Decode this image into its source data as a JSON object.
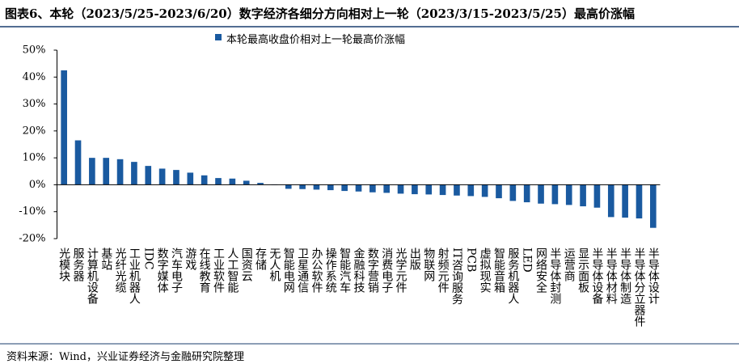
{
  "chart_data": {
    "type": "bar",
    "title": "图表6、本轮（2023/5/25-2023/6/20）数字经济各细分方向相对上一轮（2023/3/15-2023/5/25）最高价涨幅",
    "source": "资料来源：Wind，兴业证券经济与金融研究院整理",
    "series": [
      {
        "name": "本轮最高收盘价相对上一轮最高价涨幅",
        "color": "#1a5aa0",
        "values": [
          42.5,
          16.5,
          10,
          10,
          9.5,
          8.5,
          7,
          6,
          5.5,
          4.5,
          3.5,
          2.5,
          2.3,
          1.5,
          0.7,
          -0.1,
          -1.5,
          -1.6,
          -1.8,
          -2,
          -2.3,
          -2.5,
          -2.8,
          -3,
          -3.3,
          -3.5,
          -3.6,
          -3.8,
          -4,
          -4.2,
          -4.5,
          -5,
          -6,
          -6.5,
          -7,
          -7.2,
          -7.5,
          -8,
          -8.5,
          -12,
          -12.2,
          -12.5,
          -16
        ]
      }
    ],
    "categories": [
      "光模块",
      "服务器",
      "计算机设备",
      "基站",
      "光纤光缆",
      "工业机器人",
      "IDC",
      "数字媒体",
      "汽车电子",
      "游戏",
      "在线教育",
      "工业软件",
      "人工智能",
      "国资云",
      "存储",
      "无人机",
      "智能电网",
      "卫星通信",
      "办公软件",
      "操作系统",
      "智能汽车",
      "金融科技",
      "数字营销",
      "消费电子",
      "光学元件",
      "出版",
      "物联网",
      "射频元件",
      "IT咨询服务",
      "PCB",
      "虚拟现实",
      "智能音箱",
      "服务机器人",
      "LED",
      "网络安全",
      "半导体封测",
      "运营商",
      "显示面板",
      "半导体设备",
      "半导体材料",
      "半导体制造",
      "半导体分立器件",
      "半导体设计"
    ],
    "ylim": [
      -20,
      50
    ],
    "yticks": [
      {
        "value": -20,
        "label": "-20%"
      },
      {
        "value": -10,
        "label": "-10%"
      },
      {
        "value": 0,
        "label": "0%"
      },
      {
        "value": 10,
        "label": "10%"
      },
      {
        "value": 20,
        "label": "20%"
      },
      {
        "value": 30,
        "label": "30%"
      },
      {
        "value": 40,
        "label": "40%"
      },
      {
        "value": 50,
        "label": "50%"
      }
    ]
  }
}
